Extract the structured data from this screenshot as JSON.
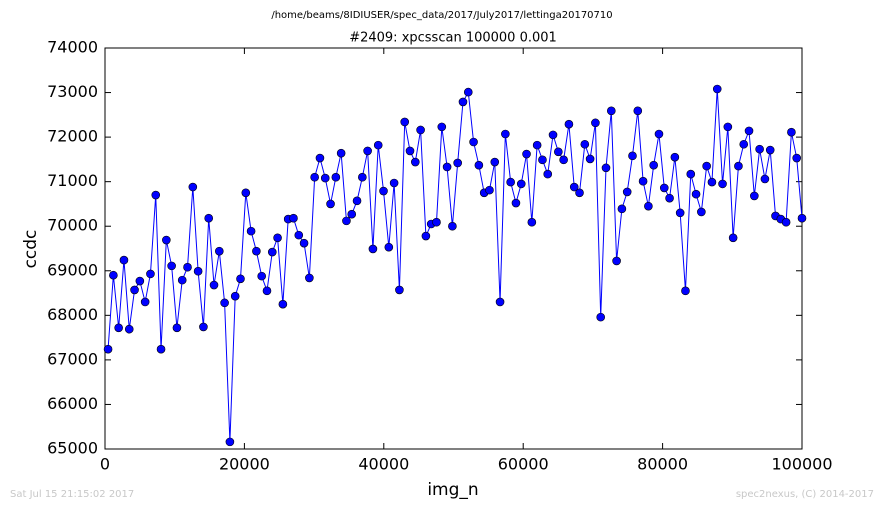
{
  "chart_data": {
    "type": "line",
    "path_title": "/home/beams/8IDIUSER/spec_data/2017/July2017/lettinga20170710",
    "title": "#2409: xpcsscan 100000 0.001",
    "xlabel": "img_n",
    "ylabel": "ccdc",
    "footer_left": "Sat Jul 15 21:15:02 2017",
    "footer_right": "spec2nexus, (C) 2014-2017",
    "xlim": [
      0,
      100000
    ],
    "xticks": [
      0,
      20000,
      40000,
      60000,
      80000,
      100000
    ],
    "ylim": [
      65000,
      74000
    ],
    "yticks": [
      65000,
      66000,
      67000,
      68000,
      69000,
      70000,
      71000,
      72000,
      73000,
      74000
    ],
    "x": [
      440,
      1200,
      1960,
      2720,
      3480,
      4240,
      5000,
      5760,
      6520,
      7280,
      8040,
      8800,
      9560,
      10320,
      11080,
      11840,
      12600,
      13360,
      14120,
      14880,
      15640,
      16400,
      17160,
      17920,
      18680,
      19440,
      20200,
      20960,
      21720,
      22480,
      23240,
      24000,
      24760,
      25520,
      26280,
      27040,
      27800,
      28560,
      29320,
      30080,
      30840,
      31600,
      32360,
      33120,
      33880,
      34640,
      35400,
      36160,
      36920,
      37680,
      38440,
      39200,
      39960,
      40720,
      41480,
      42240,
      43000,
      43760,
      44520,
      45280,
      46040,
      46800,
      47560,
      48320,
      49080,
      49840,
      50600,
      51360,
      52120,
      52880,
      53640,
      54400,
      55160,
      55920,
      56680,
      57440,
      58200,
      58960,
      59720,
      60480,
      61240,
      62000,
      62760,
      63520,
      64280,
      65040,
      65800,
      66560,
      67320,
      68080,
      68840,
      69600,
      70360,
      71120,
      71880,
      72640,
      73400,
      74160,
      74920,
      75680,
      76440,
      77200,
      77960,
      78720,
      79480,
      80240,
      81000,
      81760,
      82520,
      83280,
      84040,
      84800,
      85560,
      86320,
      87080,
      87840,
      88600,
      89360,
      90120,
      90880,
      91640,
      92400,
      93160,
      93920,
      94680,
      95440,
      96200,
      96960,
      97720,
      98480,
      99240,
      100000
    ],
    "series": [
      {
        "color": "#0000ff",
        "values": [
          67240,
          68900,
          67720,
          69240,
          67690,
          68570,
          68770,
          68300,
          68930,
          70700,
          67240,
          69690,
          69110,
          67720,
          68790,
          69080,
          70880,
          68990,
          67740,
          70180,
          68680,
          69440,
          68280,
          65160,
          68430,
          68820,
          70750,
          69890,
          69440,
          68880,
          68550,
          69420,
          69740,
          68250,
          70160,
          70180,
          69800,
          69620,
          68840,
          71100,
          71530,
          71080,
          70500,
          71100,
          71640,
          70120,
          70270,
          70570,
          71100,
          71690,
          69490,
          71820,
          70790,
          69530,
          70970,
          68570,
          72340,
          71690,
          71440,
          72160,
          69780,
          70050,
          70090,
          72230,
          71330,
          70000,
          71420,
          72790,
          73010,
          71890,
          71370,
          70750,
          70810,
          71440,
          68300,
          72070,
          70990,
          70520,
          70950,
          71620,
          70090,
          71820,
          71490,
          71170,
          72050,
          71670,
          71490,
          72290,
          70880,
          70750,
          71840,
          71510,
          72320,
          67960,
          71310,
          72590,
          69220,
          70390,
          70770,
          71580,
          72590,
          71010,
          70450,
          71370,
          72070,
          70860,
          70630,
          71550,
          70300,
          68550,
          71170,
          70720,
          70320,
          71350,
          70990,
          73080,
          70950,
          72230,
          69740,
          71350,
          71840,
          72140,
          70680,
          71730,
          71060,
          71710,
          70230,
          70160,
          70090,
          72110,
          71530,
          70180
        ]
      }
    ]
  }
}
